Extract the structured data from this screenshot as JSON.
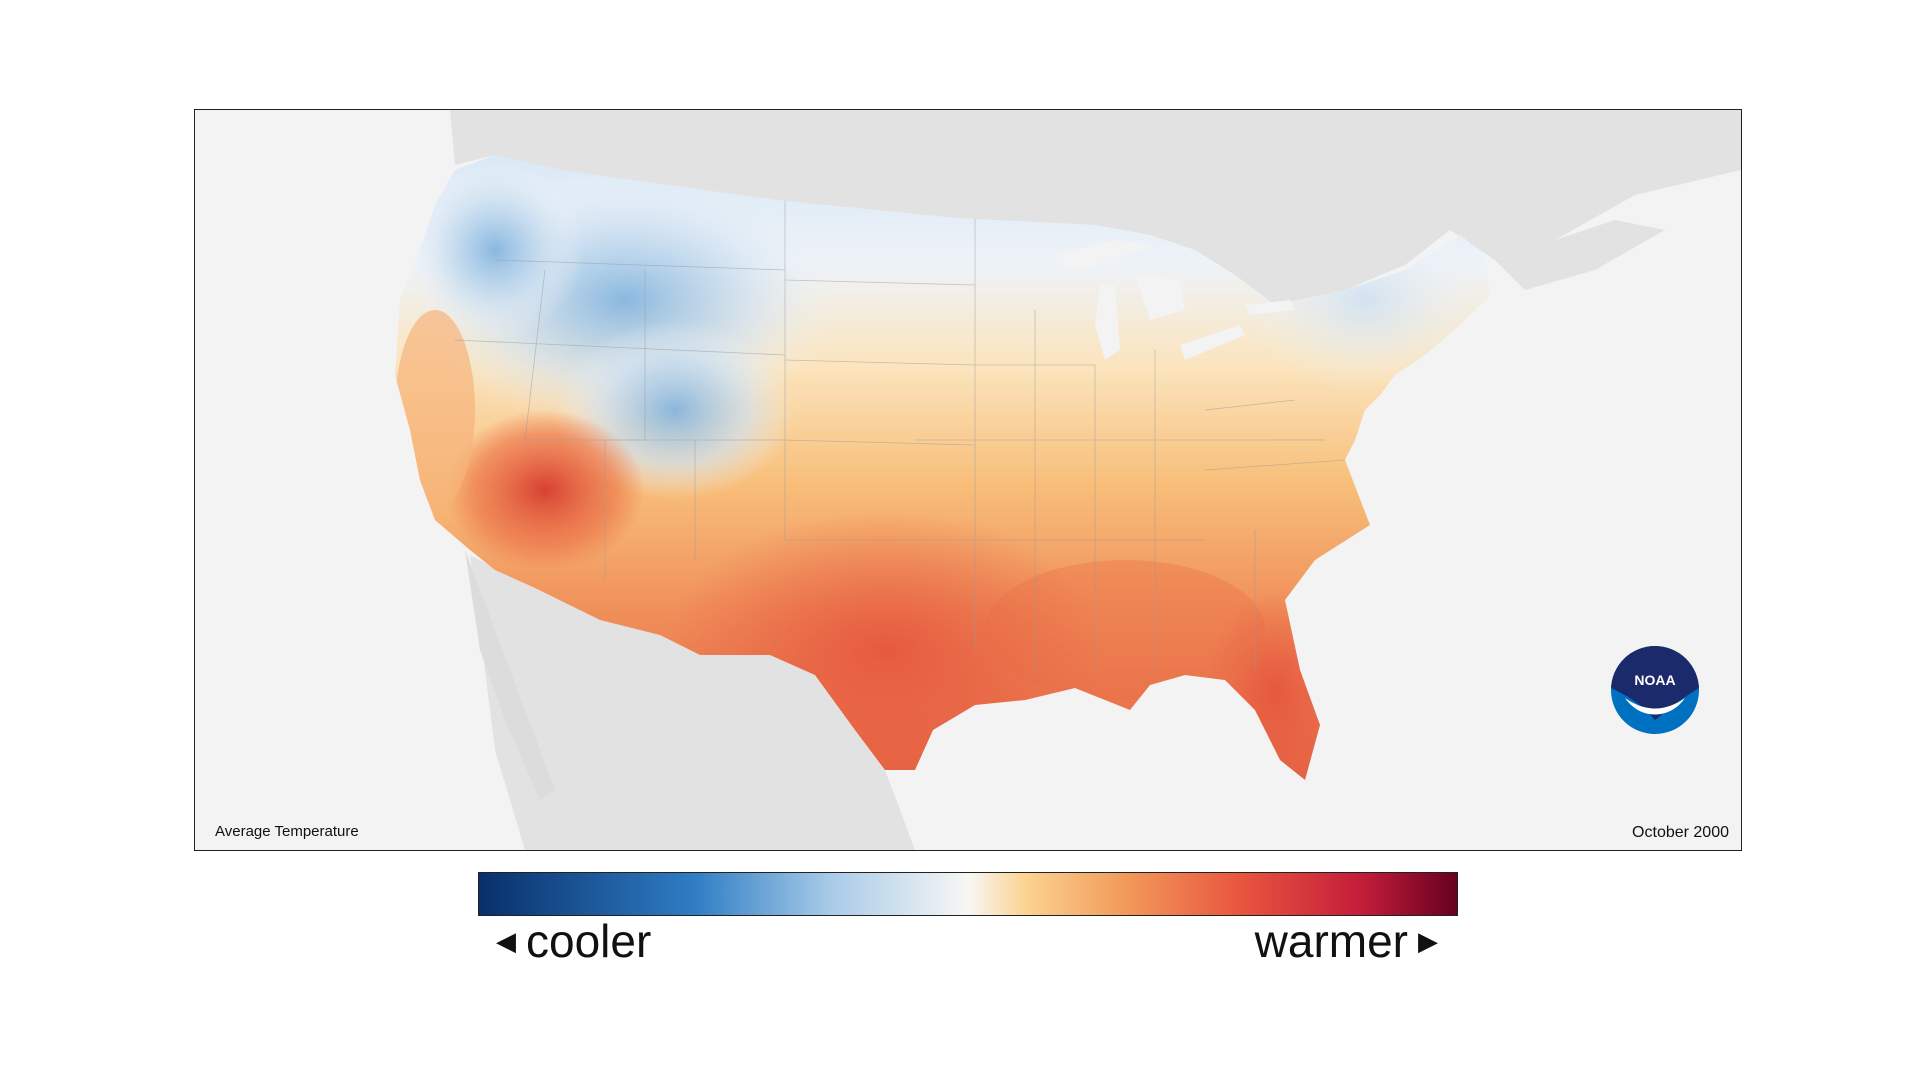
{
  "map": {
    "title_left": "Average Temperature",
    "date_label": "October 2000",
    "logo_text": "NOAA",
    "palette": {
      "cold_deep": "#08306b",
      "cold": "#2f7dc4",
      "cool": "#a9cbe8",
      "neutral": "#f7f7f4",
      "warm_light": "#fcd290",
      "warm": "#f29a5a",
      "hot": "#e8553e",
      "very_hot": "#c41e3a",
      "extreme": "#67001f"
    }
  },
  "legend": {
    "low_label": "cooler",
    "high_label": "warmer",
    "left_arrow": "◀",
    "right_arrow": "▶"
  }
}
